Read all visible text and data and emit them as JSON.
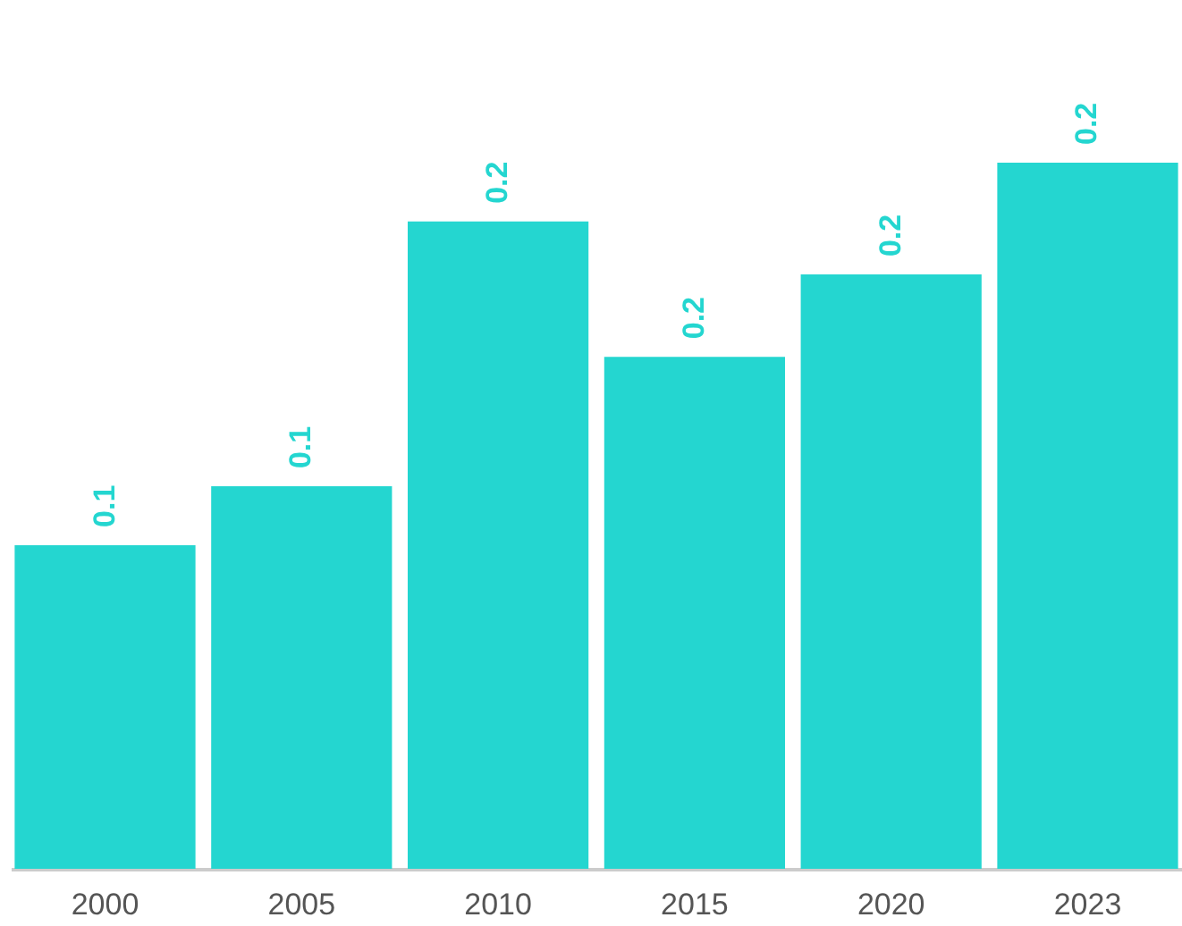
{
  "chart_data": {
    "type": "bar",
    "categories": [
      "2000",
      "2005",
      "2010",
      "2015",
      "2020",
      "2023"
    ],
    "values": [
      0.11,
      0.13,
      0.22,
      0.174,
      0.202,
      0.24
    ],
    "value_labels": [
      "0.1",
      "0.1",
      "0.2",
      "0.2",
      "0.2",
      "0.2"
    ],
    "color": "#24d6d0"
  }
}
